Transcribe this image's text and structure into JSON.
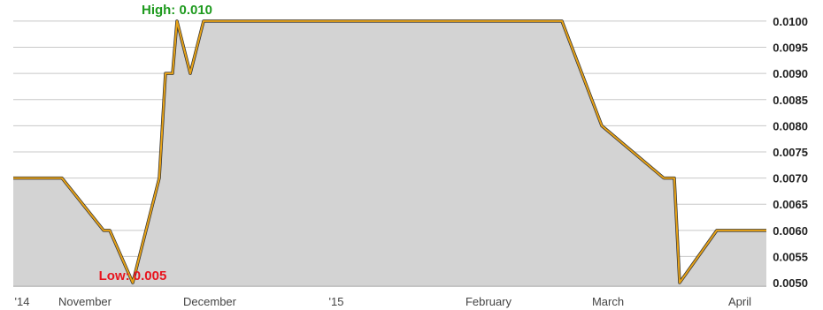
{
  "chart_data": {
    "type": "area",
    "title": "",
    "xlabel": "",
    "ylabel": "",
    "ylim": [
      0.00495,
      0.0101
    ],
    "y_ticks": [
      "0.0100",
      "0.0095",
      "0.0090",
      "0.0085",
      "0.0080",
      "0.0075",
      "0.0070",
      "0.0065",
      "0.0060",
      "0.0055",
      "0.0050"
    ],
    "x_labels": [
      "'14",
      "November",
      "December",
      "'15",
      "February",
      "March",
      "April"
    ],
    "annotations": {
      "high": "High: 0.010",
      "low": "Low: 0.005"
    },
    "series": [
      {
        "values": [
          0.007,
          0.007,
          0.006,
          0.006,
          0.005,
          0.007,
          0.009,
          0.009,
          0.01,
          0.009,
          0.01,
          0.01,
          0.01,
          0.01,
          0.01,
          0.008,
          0.007,
          0.007,
          0.005,
          0.006,
          0.006
        ]
      }
    ],
    "grid": true,
    "y_axis_position": "right",
    "colors": {
      "line": "#e8a317",
      "line_shadow": "#333333",
      "fill": "#d3d3d3",
      "grid": "#c8c8c8",
      "high": "#1e9a1e",
      "low": "#e8141e"
    }
  }
}
